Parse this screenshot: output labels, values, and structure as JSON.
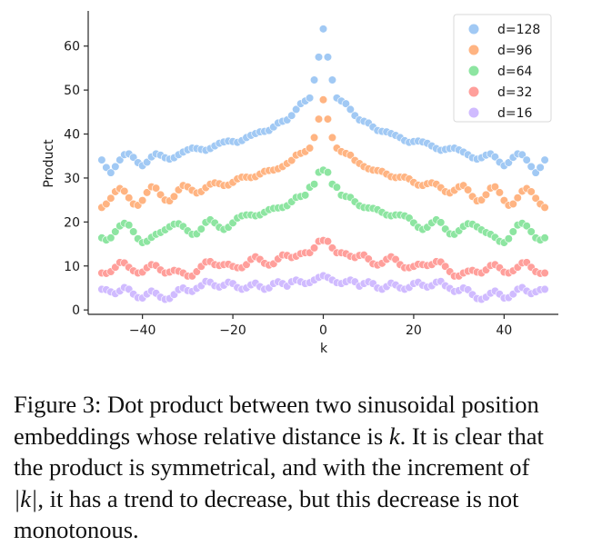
{
  "chart_data": {
    "type": "scatter",
    "xlabel": "k",
    "ylabel": "Product",
    "xlim": [
      -52,
      52
    ],
    "ylim": [
      -1,
      68
    ],
    "xticks": [
      -40,
      -20,
      0,
      20,
      40
    ],
    "yticks": [
      0,
      10,
      20,
      30,
      40,
      50,
      60
    ],
    "xtick_labels": [
      "−40",
      "−20",
      "0",
      "20",
      "40"
    ],
    "ytick_labels": [
      "0",
      "10",
      "20",
      "30",
      "40",
      "50",
      "60"
    ],
    "grid": false,
    "legend_position": "top-right",
    "x": [
      -49,
      -48,
      -47,
      -46,
      -45,
      -44,
      -43,
      -42,
      -41,
      -40,
      -39,
      -38,
      -37,
      -36,
      -35,
      -34,
      -33,
      -32,
      -31,
      -30,
      -29,
      -28,
      -27,
      -26,
      -25,
      -24,
      -23,
      -22,
      -21,
      -20,
      -19,
      -18,
      -17,
      -16,
      -15,
      -14,
      -13,
      -12,
      -11,
      -10,
      -9,
      -8,
      -7,
      -6,
      -5,
      -4,
      -3,
      -2,
      -1,
      0,
      1,
      2,
      3,
      4,
      5,
      6,
      7,
      8,
      9,
      10,
      11,
      12,
      13,
      14,
      15,
      16,
      17,
      18,
      19,
      20,
      21,
      22,
      23,
      24,
      25,
      26,
      27,
      28,
      29,
      30,
      31,
      32,
      33,
      34,
      35,
      36,
      37,
      38,
      39,
      40,
      41,
      42,
      43,
      44,
      45,
      46,
      47,
      48,
      49
    ],
    "series": [
      {
        "name": "d=128",
        "color": "#a1c9f4",
        "values": [
          34.1,
          32.4,
          31.2,
          32.6,
          34.1,
          35.3,
          35.5,
          34.7,
          33.5,
          32.8,
          33.6,
          34.8,
          35.5,
          35.2,
          34.6,
          34.3,
          34.6,
          35.3,
          35.9,
          36.4,
          36.8,
          36.7,
          36.5,
          36.3,
          36.7,
          37.3,
          37.9,
          38.2,
          38.4,
          38.3,
          38.1,
          38.5,
          39.2,
          39.7,
          40.1,
          40.5,
          40.6,
          40.8,
          41.6,
          42.5,
          42.9,
          43.2,
          44.2,
          45.6,
          46.9,
          47.5,
          48.2,
          52.3,
          57.5,
          63.9,
          57.5,
          52.3,
          48.2,
          47.5,
          46.9,
          45.6,
          44.2,
          43.2,
          42.9,
          42.5,
          41.6,
          40.8,
          40.6,
          40.5,
          40.1,
          39.7,
          39.2,
          38.5,
          38.1,
          38.3,
          38.4,
          38.2,
          37.9,
          37.3,
          36.7,
          36.3,
          36.5,
          36.7,
          36.8,
          36.4,
          35.9,
          35.3,
          34.6,
          34.3,
          34.6,
          35.2,
          35.5,
          34.8,
          33.6,
          32.8,
          33.5,
          34.7,
          35.5,
          35.3,
          34.1,
          32.6,
          31.2,
          32.4,
          34.1
        ]
      },
      {
        "name": "d=96",
        "color": "#ffb482",
        "values": [
          23.3,
          24.1,
          25.4,
          26.9,
          27.6,
          27.0,
          25.5,
          24.1,
          23.8,
          24.9,
          26.7,
          28.0,
          27.7,
          26.2,
          25.0,
          24.8,
          25.8,
          27.3,
          28.3,
          28.0,
          27.2,
          26.6,
          26.9,
          27.8,
          28.6,
          28.9,
          28.7,
          28.3,
          28.4,
          29.0,
          29.8,
          30.2,
          30.2,
          30.1,
          30.3,
          30.9,
          31.5,
          31.7,
          31.8,
          32.1,
          32.6,
          33.3,
          34.0,
          35.2,
          35.6,
          36.0,
          36.8,
          39.2,
          43.4,
          47.8,
          43.4,
          39.2,
          36.8,
          36.0,
          35.6,
          35.2,
          34.0,
          33.3,
          32.6,
          32.1,
          31.8,
          31.7,
          31.5,
          30.9,
          30.3,
          30.1,
          30.2,
          30.2,
          29.8,
          29.0,
          28.4,
          28.3,
          28.7,
          28.9,
          28.6,
          27.8,
          26.9,
          26.6,
          27.2,
          28.0,
          28.3,
          27.3,
          25.8,
          24.8,
          25.0,
          26.2,
          27.7,
          28.0,
          26.7,
          24.9,
          23.8,
          24.1,
          25.5,
          27.0,
          27.6,
          26.9,
          25.4,
          24.1,
          23.3
        ]
      },
      {
        "name": "d=64",
        "color": "#8de5a1",
        "values": [
          16.4,
          15.9,
          16.4,
          17.8,
          19.1,
          19.7,
          19.3,
          17.8,
          16.2,
          15.3,
          15.6,
          16.5,
          17.2,
          17.6,
          18.2,
          18.9,
          19.5,
          19.6,
          19.0,
          18.0,
          17.2,
          17.3,
          18.4,
          19.9,
          20.5,
          19.8,
          18.8,
          18.3,
          18.8,
          19.8,
          20.9,
          21.4,
          21.6,
          21.6,
          21.4,
          21.6,
          22.2,
          22.8,
          23.1,
          23.2,
          23.3,
          23.7,
          24.6,
          25.6,
          25.8,
          26.1,
          27.9,
          28.6,
          31.3,
          31.8,
          31.3,
          28.6,
          27.9,
          26.1,
          25.8,
          25.6,
          24.6,
          23.7,
          23.3,
          23.2,
          23.1,
          22.8,
          22.2,
          21.6,
          21.4,
          21.6,
          21.6,
          21.4,
          20.9,
          19.8,
          18.8,
          18.3,
          18.8,
          19.8,
          20.5,
          19.9,
          18.4,
          17.3,
          17.2,
          18.0,
          19.0,
          19.6,
          19.5,
          18.9,
          18.2,
          17.6,
          17.2,
          16.5,
          15.6,
          15.3,
          16.2,
          17.8,
          19.3,
          19.7,
          19.1,
          17.8,
          16.4,
          15.9,
          16.4
        ]
      },
      {
        "name": "d=32",
        "color": "#ff9f9b",
        "values": [
          8.4,
          8.3,
          8.7,
          9.7,
          10.8,
          10.7,
          9.7,
          8.9,
          8.4,
          8.6,
          9.6,
          10.3,
          10.1,
          9.1,
          8.4,
          8.6,
          9.0,
          8.8,
          8.4,
          7.7,
          7.7,
          8.7,
          9.9,
          10.9,
          11.0,
          10.3,
          10.1,
          10.3,
          10.4,
          9.9,
          9.6,
          9.6,
          10.3,
          11.5,
          12.1,
          11.5,
          10.6,
          10.2,
          10.5,
          11.6,
          12.5,
          12.4,
          11.9,
          12.2,
          12.8,
          13.0,
          13.0,
          14.1,
          15.6,
          15.8,
          15.6,
          14.1,
          13.0,
          13.0,
          12.8,
          12.2,
          11.9,
          12.4,
          12.5,
          11.6,
          10.5,
          10.2,
          10.6,
          11.5,
          12.1,
          11.5,
          10.3,
          9.6,
          9.6,
          9.9,
          10.4,
          10.3,
          10.1,
          10.3,
          11.0,
          10.9,
          9.9,
          8.7,
          7.7,
          7.7,
          8.4,
          8.8,
          9.0,
          8.6,
          8.4,
          9.1,
          10.1,
          10.3,
          9.6,
          8.6,
          8.4,
          8.9,
          9.7,
          10.7,
          10.8,
          9.7,
          8.7,
          8.3,
          8.4
        ]
      },
      {
        "name": "d=16",
        "color": "#d0bbff",
        "values": [
          4.7,
          4.6,
          4.1,
          3.7,
          4.3,
          5.1,
          4.7,
          3.6,
          2.8,
          2.7,
          3.6,
          4.3,
          3.8,
          2.9,
          2.4,
          2.6,
          3.5,
          4.6,
          5.0,
          4.4,
          4.2,
          4.9,
          5.5,
          6.5,
          6.3,
          5.5,
          5.2,
          5.6,
          6.3,
          6.0,
          5.1,
          4.7,
          5.0,
          5.7,
          6.1,
          5.3,
          4.7,
          5.0,
          6.0,
          6.4,
          6.0,
          5.4,
          6.4,
          6.8,
          6.4,
          6.0,
          6.2,
          6.8,
          7.4,
          7.8,
          7.4,
          6.8,
          6.2,
          6.0,
          6.4,
          6.8,
          6.4,
          5.4,
          6.0,
          6.4,
          6.0,
          5.0,
          4.7,
          5.3,
          6.1,
          5.7,
          5.0,
          4.7,
          5.1,
          6.0,
          6.3,
          5.6,
          5.2,
          5.5,
          6.3,
          6.5,
          5.5,
          4.9,
          4.2,
          4.4,
          5.0,
          4.6,
          3.5,
          2.6,
          2.4,
          2.9,
          3.8,
          4.3,
          3.6,
          2.7,
          2.8,
          3.6,
          4.7,
          5.1,
          4.3,
          3.7,
          4.1,
          4.6,
          4.7
        ]
      }
    ]
  },
  "caption": {
    "lines": [
      [
        "Figure 3: Dot product between two sinusoidal position"
      ],
      [
        "embeddings whose relative distance is ",
        {
          "math": "k"
        },
        ". It is clear that"
      ],
      [
        "the product is symmetrical, and with the increment of"
      ],
      [
        {
          "math": "|k|"
        },
        ", it has a trend to decrease, but this decrease is not"
      ],
      [
        "monotonous."
      ]
    ]
  }
}
